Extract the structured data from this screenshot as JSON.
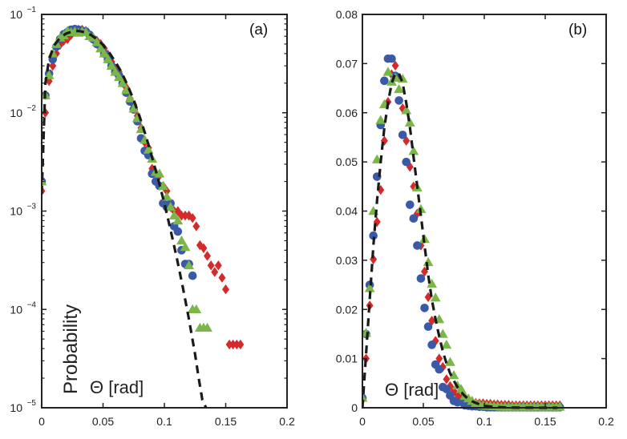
{
  "chart_data": [
    {
      "type": "scatter",
      "panel_label": "(a)",
      "xlabel": "Θ [rad]",
      "ylabel": "Probability",
      "yscale": "log",
      "xlim": [
        0,
        0.2
      ],
      "ylim": [
        1e-05,
        0.1
      ],
      "x_ticks": [
        "0",
        "0.05",
        "0.1",
        "0.15",
        "0.2"
      ],
      "x_tick_values": [
        0,
        0.05,
        0.1,
        0.15,
        0.2
      ],
      "y_ticks": [
        {
          "base": "10",
          "exp": "−1",
          "value": 0.1
        },
        {
          "base": "10",
          "exp": "−2",
          "value": 0.01
        },
        {
          "base": "10",
          "exp": "−3",
          "value": 0.001
        },
        {
          "base": "10",
          "exp": "−4",
          "value": 0.0001
        },
        {
          "base": "10",
          "exp": "−5",
          "value": 1e-05
        }
      ],
      "fit_line": {
        "style": "dashed",
        "color": "#1a1a1a",
        "x": [
          0.0,
          0.003,
          0.006,
          0.01,
          0.015,
          0.02,
          0.025,
          0.03,
          0.035,
          0.04,
          0.045,
          0.05,
          0.055,
          0.06,
          0.065,
          0.07,
          0.075,
          0.08,
          0.085,
          0.09,
          0.095,
          0.1,
          0.105,
          0.11,
          0.115,
          0.12,
          0.125,
          0.128,
          0.131,
          0.134
        ],
        "y": [
          0.0015,
          0.02,
          0.035,
          0.048,
          0.058,
          0.064,
          0.067,
          0.068,
          0.066,
          0.062,
          0.056,
          0.049,
          0.041,
          0.033,
          0.026,
          0.019,
          0.0135,
          0.009,
          0.0058,
          0.0035,
          0.0021,
          0.0012,
          0.00065,
          0.00034,
          0.00017,
          8e-05,
          3.5e-05,
          2e-05,
          1.2e-05,
          1e-05
        ]
      },
      "series": [
        {
          "name": "blue circles",
          "marker": "circle",
          "color": "#3a5aa8",
          "x": [
            0.0,
            0.003,
            0.006,
            0.009,
            0.012,
            0.015,
            0.018,
            0.021,
            0.024,
            0.027,
            0.03,
            0.033,
            0.036,
            0.039,
            0.042,
            0.045,
            0.048,
            0.051,
            0.054,
            0.057,
            0.06,
            0.063,
            0.066,
            0.069,
            0.072,
            0.075,
            0.078,
            0.081,
            0.084,
            0.087,
            0.09,
            0.093,
            0.096,
            0.099,
            0.102,
            0.105,
            0.108,
            0.111,
            0.114,
            0.117,
            0.12,
            0.123
          ],
          "y": [
            0.002,
            0.015,
            0.025,
            0.035,
            0.047,
            0.056,
            0.063,
            0.066,
            0.07,
            0.071,
            0.07,
            0.068,
            0.067,
            0.062,
            0.056,
            0.05,
            0.047,
            0.04,
            0.035,
            0.03,
            0.026,
            0.024,
            0.02,
            0.016,
            0.013,
            0.0108,
            0.0082,
            0.0055,
            0.0041,
            0.0037,
            0.0024,
            0.002,
            0.0018,
            0.0012,
            0.0011,
            0.0012,
            0.0007,
            0.00062,
            0.0004,
            0.00029,
            0.00029,
            0.00022
          ]
        },
        {
          "name": "red diamonds",
          "marker": "diamond",
          "color": "#d62a2a",
          "x": [
            0.0,
            0.003,
            0.006,
            0.009,
            0.012,
            0.015,
            0.018,
            0.021,
            0.024,
            0.027,
            0.03,
            0.033,
            0.036,
            0.039,
            0.042,
            0.045,
            0.048,
            0.051,
            0.054,
            0.057,
            0.06,
            0.063,
            0.066,
            0.069,
            0.072,
            0.075,
            0.078,
            0.081,
            0.084,
            0.087,
            0.09,
            0.093,
            0.096,
            0.099,
            0.102,
            0.105,
            0.108,
            0.111,
            0.114,
            0.117,
            0.12,
            0.123,
            0.126,
            0.129,
            0.132,
            0.135,
            0.138,
            0.141,
            0.144,
            0.147,
            0.15,
            0.153,
            0.156,
            0.159,
            0.162
          ],
          "y": [
            0.0016,
            0.01,
            0.021,
            0.03,
            0.04,
            0.049,
            0.054,
            0.056,
            0.062,
            0.068,
            0.07,
            0.07,
            0.068,
            0.061,
            0.058,
            0.054,
            0.05,
            0.045,
            0.039,
            0.033,
            0.028,
            0.026,
            0.022,
            0.018,
            0.014,
            0.012,
            0.0093,
            0.007,
            0.005,
            0.0044,
            0.0027,
            0.0024,
            0.0023,
            0.0018,
            0.0016,
            0.0011,
            0.001,
            0.001,
            0.0009,
            0.0009,
            0.0009,
            0.00085,
            0.0007,
            0.00045,
            0.00042,
            0.00035,
            0.00028,
            0.00024,
            0.00028,
            0.00021,
            0.00016,
            4.4e-05,
            4.4e-05,
            4.4e-05,
            4.4e-05
          ]
        },
        {
          "name": "green triangles",
          "marker": "triangle",
          "color": "#7ab648",
          "x": [
            0.0,
            0.003,
            0.006,
            0.009,
            0.012,
            0.015,
            0.018,
            0.021,
            0.024,
            0.027,
            0.03,
            0.033,
            0.036,
            0.039,
            0.042,
            0.045,
            0.048,
            0.051,
            0.054,
            0.057,
            0.06,
            0.063,
            0.066,
            0.069,
            0.072,
            0.075,
            0.078,
            0.081,
            0.084,
            0.087,
            0.09,
            0.093,
            0.096,
            0.099,
            0.102,
            0.105,
            0.108,
            0.111,
            0.114,
            0.117,
            0.12,
            0.123,
            0.126,
            0.129,
            0.132,
            0.135
          ],
          "y": [
            0.002,
            0.015,
            0.024,
            0.04,
            0.05,
            0.058,
            0.061,
            0.068,
            0.066,
            0.067,
            0.065,
            0.067,
            0.066,
            0.06,
            0.058,
            0.052,
            0.045,
            0.04,
            0.035,
            0.03,
            0.026,
            0.023,
            0.02,
            0.017,
            0.014,
            0.011,
            0.0088,
            0.0068,
            0.0053,
            0.0042,
            0.0034,
            0.0025,
            0.0024,
            0.0018,
            0.0014,
            0.0011,
            0.0009,
            0.0008,
            0.0005,
            0.00043,
            0.00028,
            0.0001,
            0.0001,
            6.5e-05,
            6.5e-05,
            6.5e-05
          ]
        }
      ]
    },
    {
      "type": "scatter",
      "panel_label": "(b)",
      "xlabel": "Θ [rad]",
      "ylabel": "",
      "yscale": "linear",
      "xlim": [
        0,
        0.2
      ],
      "ylim": [
        0,
        0.08
      ],
      "x_ticks": [
        "0",
        "0.05",
        "0.1",
        "0.15",
        "0.2"
      ],
      "x_tick_values": [
        0,
        0.05,
        0.1,
        0.15,
        0.2
      ],
      "y_ticks": [
        "0",
        "0.01",
        "0.02",
        "0.03",
        "0.04",
        "0.05",
        "0.06",
        "0.07",
        "0.08"
      ],
      "y_tick_values": [
        0,
        0.01,
        0.02,
        0.03,
        0.04,
        0.05,
        0.06,
        0.07,
        0.08
      ],
      "fit_line": {
        "style": "dashed",
        "color": "#1a1a1a",
        "x": [
          0.0,
          0.003,
          0.006,
          0.009,
          0.012,
          0.015,
          0.018,
          0.021,
          0.024,
          0.027,
          0.03,
          0.033,
          0.036,
          0.039,
          0.042,
          0.045,
          0.048,
          0.051,
          0.054,
          0.057,
          0.06,
          0.063,
          0.066,
          0.069,
          0.072,
          0.075,
          0.078,
          0.081,
          0.084,
          0.087,
          0.09,
          0.093,
          0.096,
          0.1,
          0.105,
          0.11,
          0.12,
          0.13,
          0.14,
          0.15,
          0.16
        ],
        "y": [
          0.0,
          0.011,
          0.022,
          0.033,
          0.042,
          0.05,
          0.057,
          0.062,
          0.066,
          0.068,
          0.068,
          0.066,
          0.062,
          0.057,
          0.051,
          0.045,
          0.039,
          0.033,
          0.027,
          0.022,
          0.018,
          0.0145,
          0.0115,
          0.009,
          0.007,
          0.0055,
          0.0042,
          0.0032,
          0.0024,
          0.0018,
          0.0013,
          0.001,
          0.0007,
          0.0004,
          0.00025,
          0.00014,
          5e-05,
          2e-05,
          1e-05,
          0.0,
          0.0
        ]
      },
      "series": [
        {
          "name": "blue circles",
          "marker": "circle",
          "color": "#3a5aa8",
          "x": [
            0.0,
            0.003,
            0.006,
            0.009,
            0.012,
            0.015,
            0.018,
            0.021,
            0.024,
            0.027,
            0.03,
            0.033,
            0.036,
            0.039,
            0.042,
            0.045,
            0.048,
            0.051,
            0.054,
            0.057,
            0.06,
            0.063,
            0.066,
            0.069,
            0.072,
            0.075,
            0.078,
            0.081,
            0.084,
            0.087,
            0.09,
            0.093,
            0.096,
            0.099,
            0.102,
            0.105,
            0.108,
            0.111,
            0.114,
            0.117,
            0.12,
            0.123,
            0.126,
            0.129,
            0.132,
            0.135,
            0.138,
            0.141,
            0.144,
            0.147,
            0.15,
            0.153,
            0.156,
            0.159,
            0.162
          ],
          "y": [
            0.002,
            0.015,
            0.025,
            0.035,
            0.047,
            0.0575,
            0.0665,
            0.071,
            0.071,
            0.0675,
            0.0625,
            0.0555,
            0.05,
            0.0413,
            0.0385,
            0.033,
            0.0263,
            0.0203,
            0.0165,
            0.0128,
            0.0088,
            0.0078,
            0.0042,
            0.0038,
            0.0025,
            0.0014,
            0.0011,
            0.0012,
            0.0005,
            0.0004,
            0.0003,
            0.0003,
            0.0002,
            0.0002,
            0.0001,
            0.0001,
            0.0001,
            0.0001,
            0.0001,
            0.0001,
            0.0001,
            0.0001,
            0.0001,
            0.0001,
            0.0001,
            0.0001,
            0.0001,
            0.0001,
            0.0001,
            0.0001,
            0.0001,
            0.0001,
            0.0001,
            0.0001,
            0.0001
          ]
        },
        {
          "name": "red diamonds",
          "marker": "diamond",
          "color": "#d62a2a",
          "x": [
            0.0,
            0.003,
            0.006,
            0.009,
            0.012,
            0.015,
            0.018,
            0.021,
            0.024,
            0.027,
            0.03,
            0.033,
            0.036,
            0.039,
            0.042,
            0.045,
            0.048,
            0.051,
            0.054,
            0.057,
            0.06,
            0.063,
            0.066,
            0.069,
            0.072,
            0.075,
            0.078,
            0.081,
            0.084,
            0.087,
            0.09,
            0.093,
            0.096,
            0.099,
            0.102,
            0.105,
            0.108,
            0.111,
            0.114,
            0.117,
            0.12,
            0.123,
            0.126,
            0.129,
            0.132,
            0.135,
            0.138,
            0.141,
            0.144,
            0.147,
            0.15,
            0.153,
            0.156,
            0.159,
            0.162
          ],
          "y": [
            0.0016,
            0.01,
            0.0208,
            0.0302,
            0.0378,
            0.0443,
            0.0543,
            0.0622,
            0.0678,
            0.0696,
            0.0671,
            0.0609,
            0.0543,
            0.049,
            0.045,
            0.0395,
            0.033,
            0.0277,
            0.0225,
            0.0177,
            0.0136,
            0.01,
            0.0083,
            0.0058,
            0.0044,
            0.0034,
            0.0026,
            0.0018,
            0.0014,
            0.0012,
            0.0011,
            0.001,
            0.0009,
            0.0009,
            0.0008,
            0.0008,
            0.0007,
            0.0007,
            0.0006,
            0.0006,
            0.0006,
            0.0005,
            0.0005,
            0.0005,
            0.0005,
            0.0005,
            0.0005,
            0.0005,
            0.0005,
            0.0005,
            0.0005,
            0.0005,
            0.0005,
            0.0005,
            0.0005
          ]
        },
        {
          "name": "green triangles",
          "marker": "triangle",
          "color": "#7ab648",
          "x": [
            0.0,
            0.003,
            0.006,
            0.009,
            0.012,
            0.015,
            0.018,
            0.021,
            0.024,
            0.027,
            0.03,
            0.033,
            0.036,
            0.039,
            0.042,
            0.045,
            0.048,
            0.051,
            0.054,
            0.057,
            0.06,
            0.063,
            0.066,
            0.069,
            0.072,
            0.075,
            0.078,
            0.081,
            0.084,
            0.087,
            0.09,
            0.093,
            0.096,
            0.099,
            0.102,
            0.105,
            0.108,
            0.111,
            0.114,
            0.117,
            0.12,
            0.123,
            0.126,
            0.129,
            0.132,
            0.135,
            0.138,
            0.141,
            0.144,
            0.147,
            0.15,
            0.153,
            0.156,
            0.159,
            0.162
          ],
          "y": [
            0.002,
            0.0152,
            0.0243,
            0.04,
            0.0505,
            0.0585,
            0.0617,
            0.0683,
            0.0663,
            0.0671,
            0.0648,
            0.0669,
            0.0605,
            0.058,
            0.0522,
            0.0448,
            0.0404,
            0.0343,
            0.0296,
            0.0252,
            0.0224,
            0.018,
            0.015,
            0.0128,
            0.0093,
            0.0066,
            0.0045,
            0.0038,
            0.0024,
            0.0019,
            0.0014,
            0.0009,
            0.0006,
            0.0005,
            0.0004,
            0.0004,
            0.0003,
            0.0003,
            0.0002,
            0.0002,
            0.0002,
            0.0002,
            0.0002,
            0.0002,
            0.0002,
            0.0002,
            0.0002,
            0.0002,
            0.0002,
            0.0002,
            0.0002,
            0.0002,
            0.0002,
            0.0002,
            0.0002
          ]
        }
      ]
    }
  ]
}
